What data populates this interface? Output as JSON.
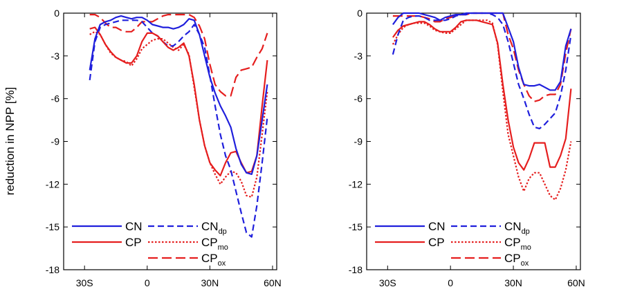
{
  "figure": {
    "ylabel": "reduction in NPP [%]"
  },
  "chart_data": [
    {
      "type": "line",
      "title": "",
      "xlabel": "",
      "ylabel": "reduction in NPP [%]",
      "xlim": [
        -40,
        62
      ],
      "ylim": [
        -18,
        0
      ],
      "xticks": [
        {
          "v": -30,
          "label": "30S"
        },
        {
          "v": 0,
          "label": "0"
        },
        {
          "v": 30,
          "label": "30N"
        },
        {
          "v": 60,
          "label": "60N"
        }
      ],
      "yticks": [
        {
          "v": 0,
          "label": "0"
        },
        {
          "v": -3,
          "label": "-3"
        },
        {
          "v": -6,
          "label": "-6"
        },
        {
          "v": -9,
          "label": "-9"
        },
        {
          "v": -12,
          "label": "-12"
        },
        {
          "v": -15,
          "label": "-15"
        },
        {
          "v": -18,
          "label": "-18"
        }
      ],
      "grid": false,
      "legend_position": "bottom-left",
      "x": [
        -27.5,
        -25,
        -22.5,
        -20,
        -17.5,
        -15,
        -12.5,
        -10,
        -7.5,
        -5,
        -2.5,
        0,
        2.5,
        5,
        7.5,
        10,
        12.5,
        15,
        17.5,
        20,
        22.5,
        25,
        27.5,
        30,
        32.5,
        35,
        37.5,
        40,
        42.5,
        45,
        47.5,
        50,
        52.5,
        55,
        57.5
      ],
      "series": [
        {
          "name": "CN",
          "color": "#1f1fdc",
          "style": "solid",
          "values": [
            -4.0,
            -1.8,
            -0.8,
            -0.6,
            -0.5,
            -0.3,
            -0.2,
            -0.3,
            -0.4,
            -0.3,
            -0.3,
            -0.5,
            -0.8,
            -0.9,
            -1.0,
            -1.0,
            -1.1,
            -1.0,
            -0.8,
            -0.4,
            -0.5,
            -1.5,
            -3.0,
            -4.5,
            -5.6,
            -6.5,
            -7.2,
            -8.0,
            -9.5,
            -10.6,
            -11.2,
            -11.3,
            -10.0,
            -7.5,
            -5.0
          ]
        },
        {
          "name": "CP",
          "color": "#e51e1e",
          "style": "solid",
          "values": [
            -1.1,
            -1.0,
            -1.5,
            -2.2,
            -2.7,
            -3.1,
            -3.3,
            -3.5,
            -3.5,
            -3.0,
            -2.0,
            -1.4,
            -1.4,
            -1.6,
            -2.0,
            -2.4,
            -2.6,
            -2.4,
            -2.1,
            -3.0,
            -5.0,
            -7.5,
            -9.3,
            -10.5,
            -11.0,
            -11.4,
            -10.5,
            -9.8,
            -9.7,
            -10.5,
            -11.2,
            -11.1,
            -10.0,
            -6.5,
            -3.3
          ]
        },
        {
          "name": "CN",
          "sub": "dp",
          "color": "#1f1fdc",
          "style": "dashed",
          "values": [
            -4.7,
            -2.0,
            -1.0,
            -0.8,
            -0.7,
            -0.6,
            -0.5,
            -0.5,
            -0.5,
            -0.5,
            -0.6,
            -1.0,
            -1.4,
            -1.6,
            -2.0,
            -2.3,
            -2.3,
            -2.0,
            -1.6,
            -1.3,
            -0.8,
            -1.5,
            -2.4,
            -4.4,
            -6.5,
            -8.5,
            -10.0,
            -11.0,
            -12.5,
            -14.0,
            -15.4,
            -15.7,
            -13.5,
            -10.5,
            -7.3
          ]
        },
        {
          "name": "CP",
          "sub": "mo",
          "color": "#e51e1e",
          "style": "dotted",
          "values": [
            -1.5,
            -1.3,
            -1.5,
            -2.2,
            -2.8,
            -3.1,
            -3.3,
            -3.4,
            -3.7,
            -3.2,
            -2.5,
            -2.2,
            -1.9,
            -1.8,
            -1.8,
            -2.1,
            -2.4,
            -2.6,
            -2.2,
            -2.9,
            -5.2,
            -7.5,
            -9.3,
            -10.5,
            -11.3,
            -12.0,
            -11.5,
            -11.1,
            -11.2,
            -11.8,
            -12.8,
            -12.9,
            -11.5,
            -8.5,
            -5.5
          ]
        },
        {
          "name": "CP",
          "sub": "ox",
          "color": "#e51e1e",
          "style": "longdash",
          "values": [
            -0.1,
            -0.1,
            -0.3,
            -0.7,
            -1.0,
            -1.0,
            -1.2,
            -1.3,
            -1.3,
            -1.0,
            -0.6,
            -0.6,
            -0.6,
            -0.4,
            -0.2,
            -0.1,
            -0.1,
            -0.1,
            -0.1,
            -0.1,
            -0.3,
            -0.9,
            -1.8,
            -3.6,
            -5.0,
            -5.5,
            -5.8,
            -5.8,
            -4.5,
            -4.0,
            -3.9,
            -3.8,
            -3.1,
            -2.5,
            -1.4
          ]
        }
      ]
    },
    {
      "type": "line",
      "title": "",
      "xlabel": "",
      "ylabel": "",
      "xlim": [
        -40,
        62
      ],
      "ylim": [
        -18,
        0
      ],
      "xticks": [
        {
          "v": -30,
          "label": "30S"
        },
        {
          "v": 0,
          "label": "0"
        },
        {
          "v": 30,
          "label": "30N"
        },
        {
          "v": 60,
          "label": "60N"
        }
      ],
      "yticks": [
        {
          "v": 0,
          "label": "0"
        },
        {
          "v": -3,
          "label": "-3"
        },
        {
          "v": -6,
          "label": "-6"
        },
        {
          "v": -9,
          "label": "-9"
        },
        {
          "v": -12,
          "label": "-12"
        },
        {
          "v": -15,
          "label": "-15"
        },
        {
          "v": -18,
          "label": "-18"
        }
      ],
      "grid": false,
      "legend_position": "bottom-left",
      "x": [
        -27.5,
        -25,
        -22.5,
        -20,
        -17.5,
        -15,
        -12.5,
        -10,
        -7.5,
        -5,
        -2.5,
        0,
        2.5,
        5,
        7.5,
        10,
        12.5,
        15,
        17.5,
        20,
        22.5,
        25,
        27.5,
        30,
        32.5,
        35,
        37.5,
        40,
        42.5,
        45,
        47.5,
        50,
        52.5,
        55,
        57.5
      ],
      "series": [
        {
          "name": "CN",
          "color": "#1f1fdc",
          "style": "solid",
          "values": [
            -0.8,
            -0.3,
            0.0,
            0.0,
            0.0,
            0.0,
            -0.1,
            -0.2,
            -0.3,
            -0.5,
            -0.3,
            -0.2,
            -0.1,
            -0.1,
            0.0,
            0.0,
            0.0,
            0.0,
            0.0,
            0.0,
            0.0,
            0.0,
            -1.0,
            -2.0,
            -3.8,
            -5.0,
            -5.1,
            -5.1,
            -5.0,
            -5.2,
            -5.4,
            -5.4,
            -4.8,
            -2.3,
            -1.1
          ]
        },
        {
          "name": "CP",
          "color": "#e51e1e",
          "style": "solid",
          "values": [
            -1.7,
            -1.2,
            -0.9,
            -0.8,
            -0.7,
            -0.6,
            -0.6,
            -0.8,
            -1.1,
            -1.3,
            -1.3,
            -1.3,
            -1.0,
            -0.6,
            -0.5,
            -0.5,
            -0.5,
            -0.6,
            -0.7,
            -0.8,
            -2.1,
            -5.0,
            -7.5,
            -9.4,
            -10.5,
            -11.0,
            -10.2,
            -9.1,
            -9.1,
            -9.1,
            -10.8,
            -10.8,
            -10.0,
            -8.8,
            -5.3
          ]
        },
        {
          "name": "CN",
          "sub": "dp",
          "color": "#1f1fdc",
          "style": "dashed",
          "values": [
            -2.9,
            -1.5,
            -0.5,
            -0.3,
            -0.2,
            -0.2,
            -0.3,
            -0.5,
            -0.5,
            -0.5,
            -0.5,
            -0.4,
            -0.2,
            -0.1,
            -0.1,
            0.0,
            0.0,
            0.0,
            0.0,
            -0.1,
            -0.3,
            -0.8,
            -2.0,
            -3.5,
            -5.0,
            -6.0,
            -7.1,
            -8.0,
            -8.1,
            -7.8,
            -7.4,
            -7.0,
            -5.8,
            -4.0,
            -1.5
          ]
        },
        {
          "name": "CP",
          "sub": "mo",
          "color": "#e51e1e",
          "style": "dotted",
          "values": [
            -2.2,
            -1.5,
            -1.0,
            -0.8,
            -0.7,
            -0.7,
            -0.7,
            -0.9,
            -1.2,
            -1.3,
            -1.4,
            -1.4,
            -1.1,
            -0.8,
            -0.5,
            -0.5,
            -0.5,
            -0.5,
            -0.5,
            -0.7,
            -2.2,
            -5.5,
            -8.5,
            -10.0,
            -11.5,
            -12.5,
            -11.6,
            -11.2,
            -11.2,
            -12.0,
            -12.8,
            -13.1,
            -12.3,
            -11.0,
            -9.0
          ]
        },
        {
          "name": "CP",
          "sub": "ox",
          "color": "#e51e1e",
          "style": "longdash",
          "values": [
            -0.2,
            -0.2,
            -0.2,
            -0.2,
            -0.2,
            -0.2,
            -0.3,
            -0.4,
            -0.6,
            -0.6,
            -0.4,
            -0.3,
            -0.2,
            -0.1,
            -0.1,
            0.0,
            0.0,
            0.0,
            0.0,
            0.0,
            0.0,
            0.0,
            -1.5,
            -2.5,
            -4.0,
            -5.0,
            -5.8,
            -6.2,
            -6.1,
            -5.8,
            -5.7,
            -5.7,
            -5.0,
            -2.8,
            -1.1
          ]
        }
      ]
    }
  ]
}
